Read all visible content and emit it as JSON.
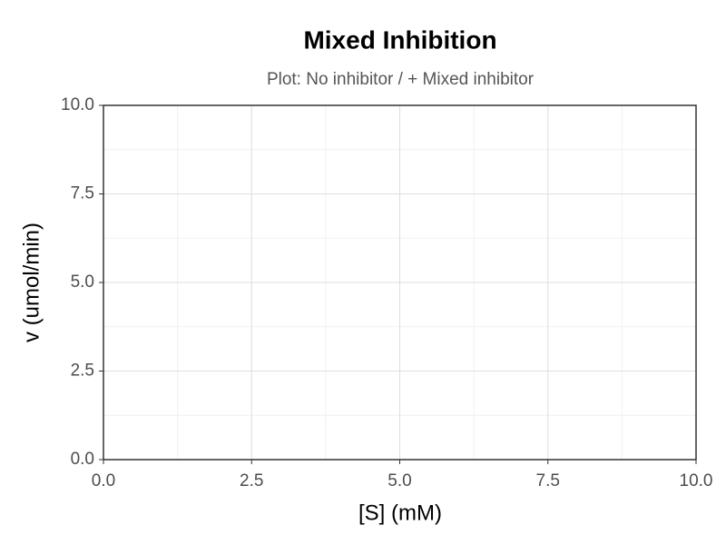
{
  "chart_data": {
    "type": "line",
    "title": "Mixed Inhibition",
    "subtitle": "Plot: No inhibitor / + Mixed inhibitor",
    "x_label": "[S] (mM)",
    "y_label": "v (umol/min)",
    "xlim": [
      0,
      10
    ],
    "ylim": [
      0,
      10
    ],
    "xticks": [
      {
        "value": 0,
        "label": "0.0"
      },
      {
        "value": 2.5,
        "label": "2.5"
      },
      {
        "value": 5,
        "label": "5.0"
      },
      {
        "value": 7.5,
        "label": "7.5"
      },
      {
        "value": 10,
        "label": "10.0"
      }
    ],
    "yticks": [
      {
        "value": 0,
        "label": "0.0"
      },
      {
        "value": 2.5,
        "label": "2.5"
      },
      {
        "value": 5,
        "label": "5.0"
      },
      {
        "value": 7.5,
        "label": "7.5"
      },
      {
        "value": 10,
        "label": "10.0"
      }
    ],
    "grid": true
  }
}
